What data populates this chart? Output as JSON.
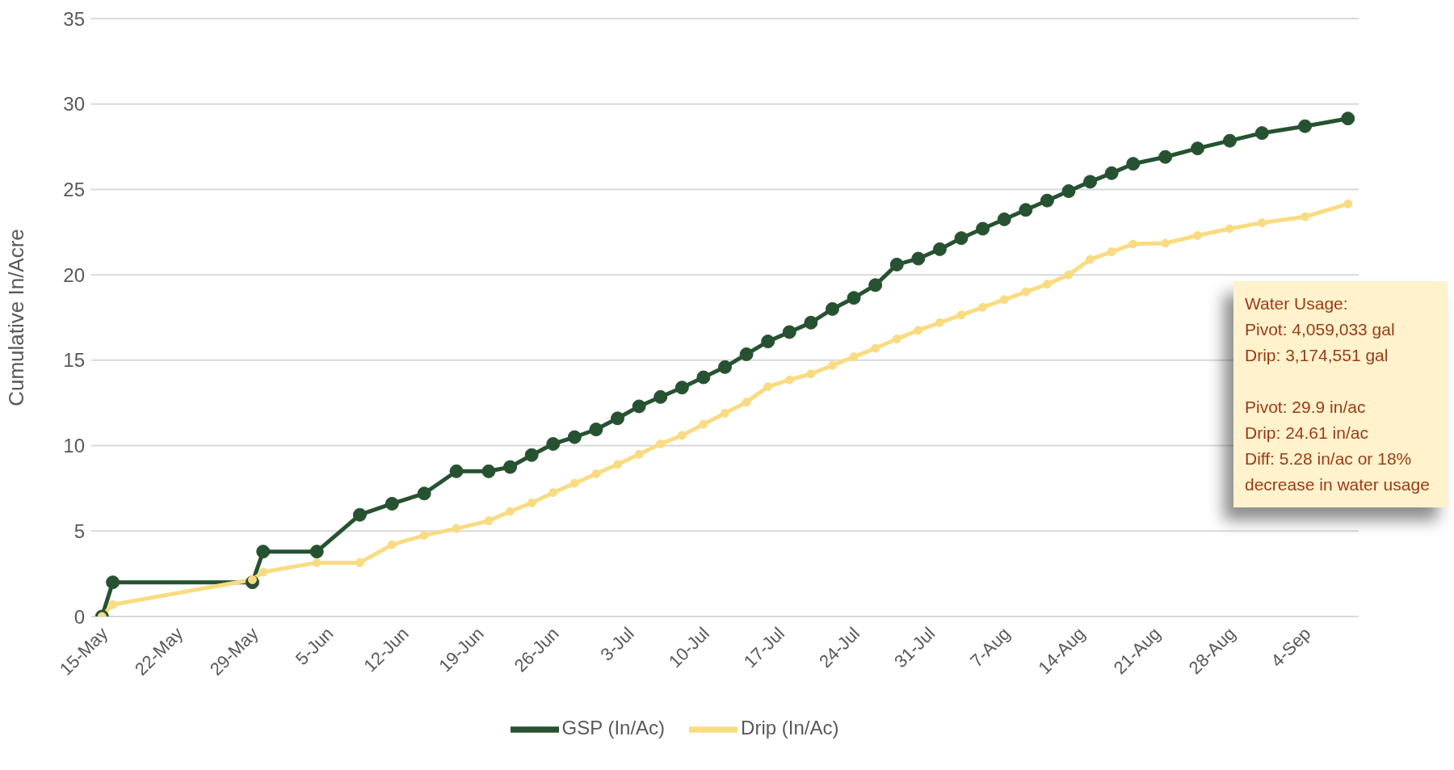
{
  "chart_data": {
    "type": "line",
    "ylabel": "Cumulative In/Acre",
    "x": [
      "--05-15",
      "--05-16",
      "--05-29",
      "--05-30",
      "--06-04",
      "--06-08",
      "--06-11",
      "--06-14",
      "--06-17",
      "--06-20",
      "--06-22",
      "--06-24",
      "--06-26",
      "--06-28",
      "--06-30",
      "--07-02",
      "--07-04",
      "--07-06",
      "--07-08",
      "--07-10",
      "--07-12",
      "--07-14",
      "--07-16",
      "--07-18",
      "--07-20",
      "--07-22",
      "--07-24",
      "--07-26",
      "--07-28",
      "--07-30",
      "--08-01",
      "--08-03",
      "--08-05",
      "--08-07",
      "--08-09",
      "--08-11",
      "--08-13",
      "--08-15",
      "--08-17",
      "--08-19",
      "--08-22",
      "--08-25",
      "--08-28",
      "--08-31",
      "--09-04",
      "--09-08"
    ],
    "series": [
      {
        "name": "GSP (In/Ac)",
        "color": "#275232",
        "values": [
          0,
          2.0,
          2.0,
          3.8,
          3.8,
          5.95,
          6.6,
          7.2,
          8.5,
          8.5,
          8.75,
          9.45,
          10.1,
          10.5,
          10.95,
          11.6,
          12.3,
          12.85,
          13.4,
          14.0,
          14.6,
          15.35,
          16.1,
          16.65,
          17.2,
          18.0,
          18.65,
          19.4,
          20.6,
          20.95,
          21.5,
          22.15,
          22.7,
          23.25,
          23.8,
          24.35,
          24.9,
          25.45,
          25.95,
          26.5,
          26.9,
          27.4,
          27.85,
          28.3,
          28.7,
          29.15
        ]
      },
      {
        "name": "Drip (In/Ac)",
        "color": "#f9dc82",
        "values": [
          0,
          0.7,
          2.15,
          2.6,
          3.15,
          3.15,
          4.2,
          4.75,
          5.15,
          5.6,
          6.15,
          6.65,
          7.25,
          7.8,
          8.35,
          8.9,
          9.5,
          10.1,
          10.6,
          11.25,
          11.9,
          12.55,
          13.45,
          13.85,
          14.2,
          14.7,
          15.2,
          15.7,
          16.25,
          16.75,
          17.2,
          17.65,
          18.1,
          18.55,
          19.0,
          19.45,
          20.0,
          20.9,
          21.35,
          21.8,
          21.85,
          22.3,
          22.7,
          23.05,
          23.4,
          24.15
        ]
      }
    ],
    "xlim": [
      "--05-14",
      "--09-09"
    ],
    "xticks": [
      {
        "value": "--05-15",
        "label": "15-May"
      },
      {
        "value": "--05-22",
        "label": "22-May"
      },
      {
        "value": "--05-29",
        "label": "29-May"
      },
      {
        "value": "--06-05",
        "label": "5-Jun"
      },
      {
        "value": "--06-12",
        "label": "12-Jun"
      },
      {
        "value": "--06-19",
        "label": "19-Jun"
      },
      {
        "value": "--06-26",
        "label": "26-Jun"
      },
      {
        "value": "--07-03",
        "label": "3-Jul"
      },
      {
        "value": "--07-10",
        "label": "10-Jul"
      },
      {
        "value": "--07-17",
        "label": "17-Jul"
      },
      {
        "value": "--07-24",
        "label": "24-Jul"
      },
      {
        "value": "--07-31",
        "label": "31-Jul"
      },
      {
        "value": "--08-07",
        "label": "7-Aug"
      },
      {
        "value": "--08-14",
        "label": "14-Aug"
      },
      {
        "value": "--08-21",
        "label": "21-Aug"
      },
      {
        "value": "--08-28",
        "label": "28-Aug"
      },
      {
        "value": "--09-04",
        "label": "4-Sep"
      }
    ],
    "ylim": [
      0,
      35
    ],
    "yticks": [
      0,
      5,
      10,
      15,
      20,
      25,
      30,
      35
    ],
    "grid": "y",
    "legend": "bottom",
    "marker": "circle",
    "line_style": "solid",
    "annotations": [
      "Water Usage:\nPivot: 4,059,033 gal\nDrip: 3,174,551 gal",
      "Pivot: 29.9 in/ac\nDrip: 24.61 in/ac\nDiff: 5.28 in/ac or 18% decrease in water usage"
    ]
  }
}
